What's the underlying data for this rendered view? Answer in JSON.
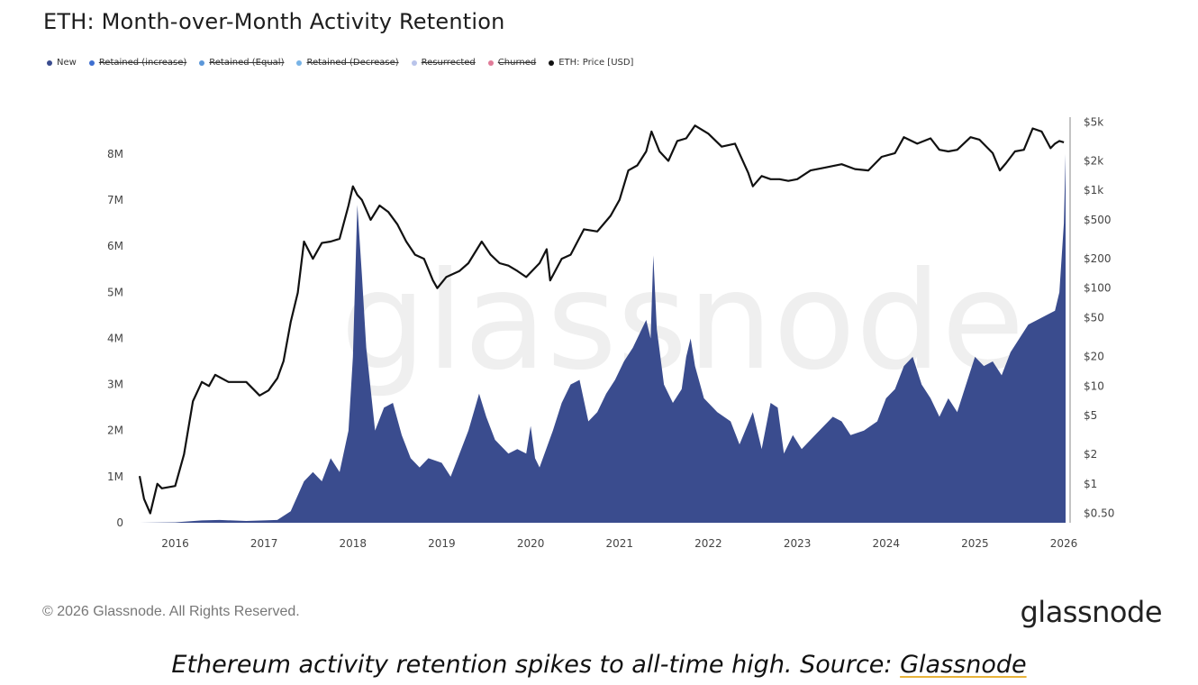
{
  "title": "ETH: Month-over-Month Activity Retention",
  "legend": [
    {
      "label": "New",
      "color": "#3a4c8e",
      "active": true
    },
    {
      "label": "Retained (increase)",
      "color": "#3e6fd0",
      "active": false
    },
    {
      "label": "Retained (Equal)",
      "color": "#5b97d9",
      "active": false
    },
    {
      "label": "Retained (Decrease)",
      "color": "#78b3e6",
      "active": false
    },
    {
      "label": "Resurrected",
      "color": "#b9c4ea",
      "active": false
    },
    {
      "label": "Churned",
      "color": "#e07b98",
      "active": false
    },
    {
      "label": "ETH: Price [USD]",
      "color": "#111111",
      "active": true
    }
  ],
  "watermark": "glassnode",
  "footer": {
    "copyright": "© 2026 Glassnode. All Rights Reserved.",
    "logo": "glassnode"
  },
  "caption": {
    "text": "Ethereum activity retention spikes to all-time high. Source: ",
    "link": "Glassnode"
  },
  "chart_data": {
    "type": "area",
    "title": "ETH: Month-over-Month Activity Retention",
    "x_ticks": [
      "2016",
      "2017",
      "2018",
      "2019",
      "2020",
      "2021",
      "2022",
      "2023",
      "2024",
      "2025",
      "2026"
    ],
    "y_left_ticks": [
      "0",
      "1M",
      "2M",
      "3M",
      "4M",
      "5M",
      "6M",
      "7M",
      "8M"
    ],
    "y_left_values": [
      0,
      1000000,
      2000000,
      3000000,
      4000000,
      5000000,
      6000000,
      7000000,
      8000000
    ],
    "y_right_ticks": [
      "$0.50",
      "$1",
      "$2",
      "$5",
      "$10",
      "$20",
      "$50",
      "$100",
      "$200",
      "$500",
      "$1k",
      "$2k",
      "$5k"
    ],
    "y_right_values": [
      0.5,
      1,
      2,
      5,
      10,
      20,
      50,
      100,
      200,
      500,
      1000,
      2000,
      5000
    ],
    "y_right_scale": "log",
    "x_range": [
      2015.6,
      2026.05
    ],
    "y_left_range": [
      0,
      8800000
    ],
    "y_right_range": [
      0.4,
      5600
    ],
    "grid": false,
    "legend_position": "top-left",
    "series": [
      {
        "name": "New",
        "color": "#3a4c8e",
        "type": "area",
        "axis": "left",
        "x": [
          2015.6,
          2016.0,
          2016.3,
          2016.5,
          2016.8,
          2017.0,
          2017.15,
          2017.3,
          2017.45,
          2017.55,
          2017.65,
          2017.75,
          2017.85,
          2017.95,
          2018.0,
          2018.05,
          2018.1,
          2018.15,
          2018.25,
          2018.35,
          2018.45,
          2018.55,
          2018.65,
          2018.75,
          2018.85,
          2019.0,
          2019.1,
          2019.2,
          2019.3,
          2019.42,
          2019.5,
          2019.6,
          2019.75,
          2019.85,
          2019.95,
          2020.0,
          2020.05,
          2020.1,
          2020.25,
          2020.35,
          2020.45,
          2020.55,
          2020.65,
          2020.75,
          2020.85,
          2020.95,
          2021.05,
          2021.15,
          2021.25,
          2021.3,
          2021.35,
          2021.38,
          2021.42,
          2021.5,
          2021.6,
          2021.7,
          2021.75,
          2021.8,
          2021.85,
          2021.95,
          2022.1,
          2022.25,
          2022.35,
          2022.5,
          2022.6,
          2022.7,
          2022.78,
          2022.85,
          2022.95,
          2023.05,
          2023.2,
          2023.4,
          2023.5,
          2023.6,
          2023.75,
          2023.9,
          2024.0,
          2024.1,
          2024.2,
          2024.3,
          2024.4,
          2024.5,
          2024.6,
          2024.7,
          2024.8,
          2024.9,
          2025.0,
          2025.1,
          2025.2,
          2025.3,
          2025.4,
          2025.5,
          2025.6,
          2025.7,
          2025.8,
          2025.9,
          2025.95,
          2026.0,
          2026.02
        ],
        "values": [
          0,
          10000,
          50000,
          60000,
          40000,
          50000,
          60000,
          250000,
          900000,
          1100000,
          900000,
          1400000,
          1100000,
          2000000,
          3600000,
          6900000,
          5400000,
          3800000,
          2000000,
          2500000,
          2600000,
          1900000,
          1400000,
          1200000,
          1400000,
          1300000,
          1000000,
          1500000,
          2000000,
          2800000,
          2300000,
          1800000,
          1500000,
          1600000,
          1500000,
          2100000,
          1400000,
          1200000,
          2000000,
          2600000,
          3000000,
          3100000,
          2200000,
          2400000,
          2800000,
          3100000,
          3500000,
          3800000,
          4200000,
          4400000,
          4000000,
          5800000,
          4200000,
          3000000,
          2600000,
          2900000,
          3600000,
          4000000,
          3400000,
          2700000,
          2400000,
          2200000,
          1700000,
          2400000,
          1600000,
          2600000,
          2500000,
          1500000,
          1900000,
          1600000,
          1900000,
          2300000,
          2200000,
          1900000,
          2000000,
          2200000,
          2700000,
          2900000,
          3400000,
          3600000,
          3000000,
          2700000,
          2300000,
          2700000,
          2400000,
          3000000,
          3600000,
          3400000,
          3500000,
          3200000,
          3700000,
          4000000,
          4300000,
          4400000,
          4500000,
          4600000,
          5000000,
          6500000,
          8000000
        ]
      },
      {
        "name": "ETH: Price [USD]",
        "color": "#111111",
        "type": "line",
        "axis": "right",
        "x": [
          2015.6,
          2015.65,
          2015.72,
          2015.8,
          2015.85,
          2016.0,
          2016.1,
          2016.2,
          2016.3,
          2016.38,
          2016.45,
          2016.6,
          2016.8,
          2016.95,
          2017.05,
          2017.15,
          2017.22,
          2017.3,
          2017.38,
          2017.45,
          2017.55,
          2017.65,
          2017.75,
          2017.85,
          2017.95,
          2018.0,
          2018.05,
          2018.1,
          2018.2,
          2018.3,
          2018.4,
          2018.5,
          2018.6,
          2018.7,
          2018.8,
          2018.9,
          2018.95,
          2019.05,
          2019.2,
          2019.3,
          2019.45,
          2019.55,
          2019.65,
          2019.75,
          2019.85,
          2019.95,
          2020.1,
          2020.18,
          2020.22,
          2020.35,
          2020.45,
          2020.6,
          2020.75,
          2020.9,
          2021.0,
          2021.1,
          2021.2,
          2021.3,
          2021.36,
          2021.45,
          2021.55,
          2021.65,
          2021.75,
          2021.85,
          2022.0,
          2022.15,
          2022.3,
          2022.45,
          2022.5,
          2022.6,
          2022.7,
          2022.8,
          2022.9,
          2023.0,
          2023.15,
          2023.3,
          2023.5,
          2023.65,
          2023.8,
          2023.95,
          2024.1,
          2024.2,
          2024.35,
          2024.5,
          2024.6,
          2024.7,
          2024.8,
          2024.95,
          2025.05,
          2025.2,
          2025.28,
          2025.35,
          2025.45,
          2025.55,
          2025.65,
          2025.75,
          2025.85,
          2025.9,
          2025.95,
          2026.0
        ],
        "values": [
          1.2,
          0.7,
          0.5,
          1.0,
          0.9,
          0.95,
          2.0,
          7.0,
          11.0,
          10.0,
          13.0,
          11.0,
          11.0,
          8.0,
          9.0,
          12.0,
          18.0,
          45.0,
          90.0,
          300.0,
          200.0,
          290.0,
          300.0,
          320.0,
          700.0,
          1100.0,
          900.0,
          800.0,
          500.0,
          700.0,
          600.0,
          450.0,
          300.0,
          220.0,
          200.0,
          120.0,
          100.0,
          130.0,
          150.0,
          180.0,
          300.0,
          220.0,
          180.0,
          170.0,
          150.0,
          130.0,
          180.0,
          250.0,
          120.0,
          200.0,
          220.0,
          400.0,
          380.0,
          550.0,
          800.0,
          1600.0,
          1800.0,
          2500.0,
          4000.0,
          2500.0,
          2000.0,
          3200.0,
          3400.0,
          4600.0,
          3800.0,
          2800.0,
          3000.0,
          1500.0,
          1100.0,
          1400.0,
          1300.0,
          1300.0,
          1250.0,
          1300.0,
          1600.0,
          1700.0,
          1850.0,
          1650.0,
          1600.0,
          2200.0,
          2400.0,
          3500.0,
          3000.0,
          3400.0,
          2600.0,
          2500.0,
          2600.0,
          3500.0,
          3300.0,
          2400.0,
          1600.0,
          1900.0,
          2500.0,
          2600.0,
          4300.0,
          4000.0,
          2700.0,
          3000.0,
          3200.0,
          3100.0
        ]
      }
    ]
  }
}
